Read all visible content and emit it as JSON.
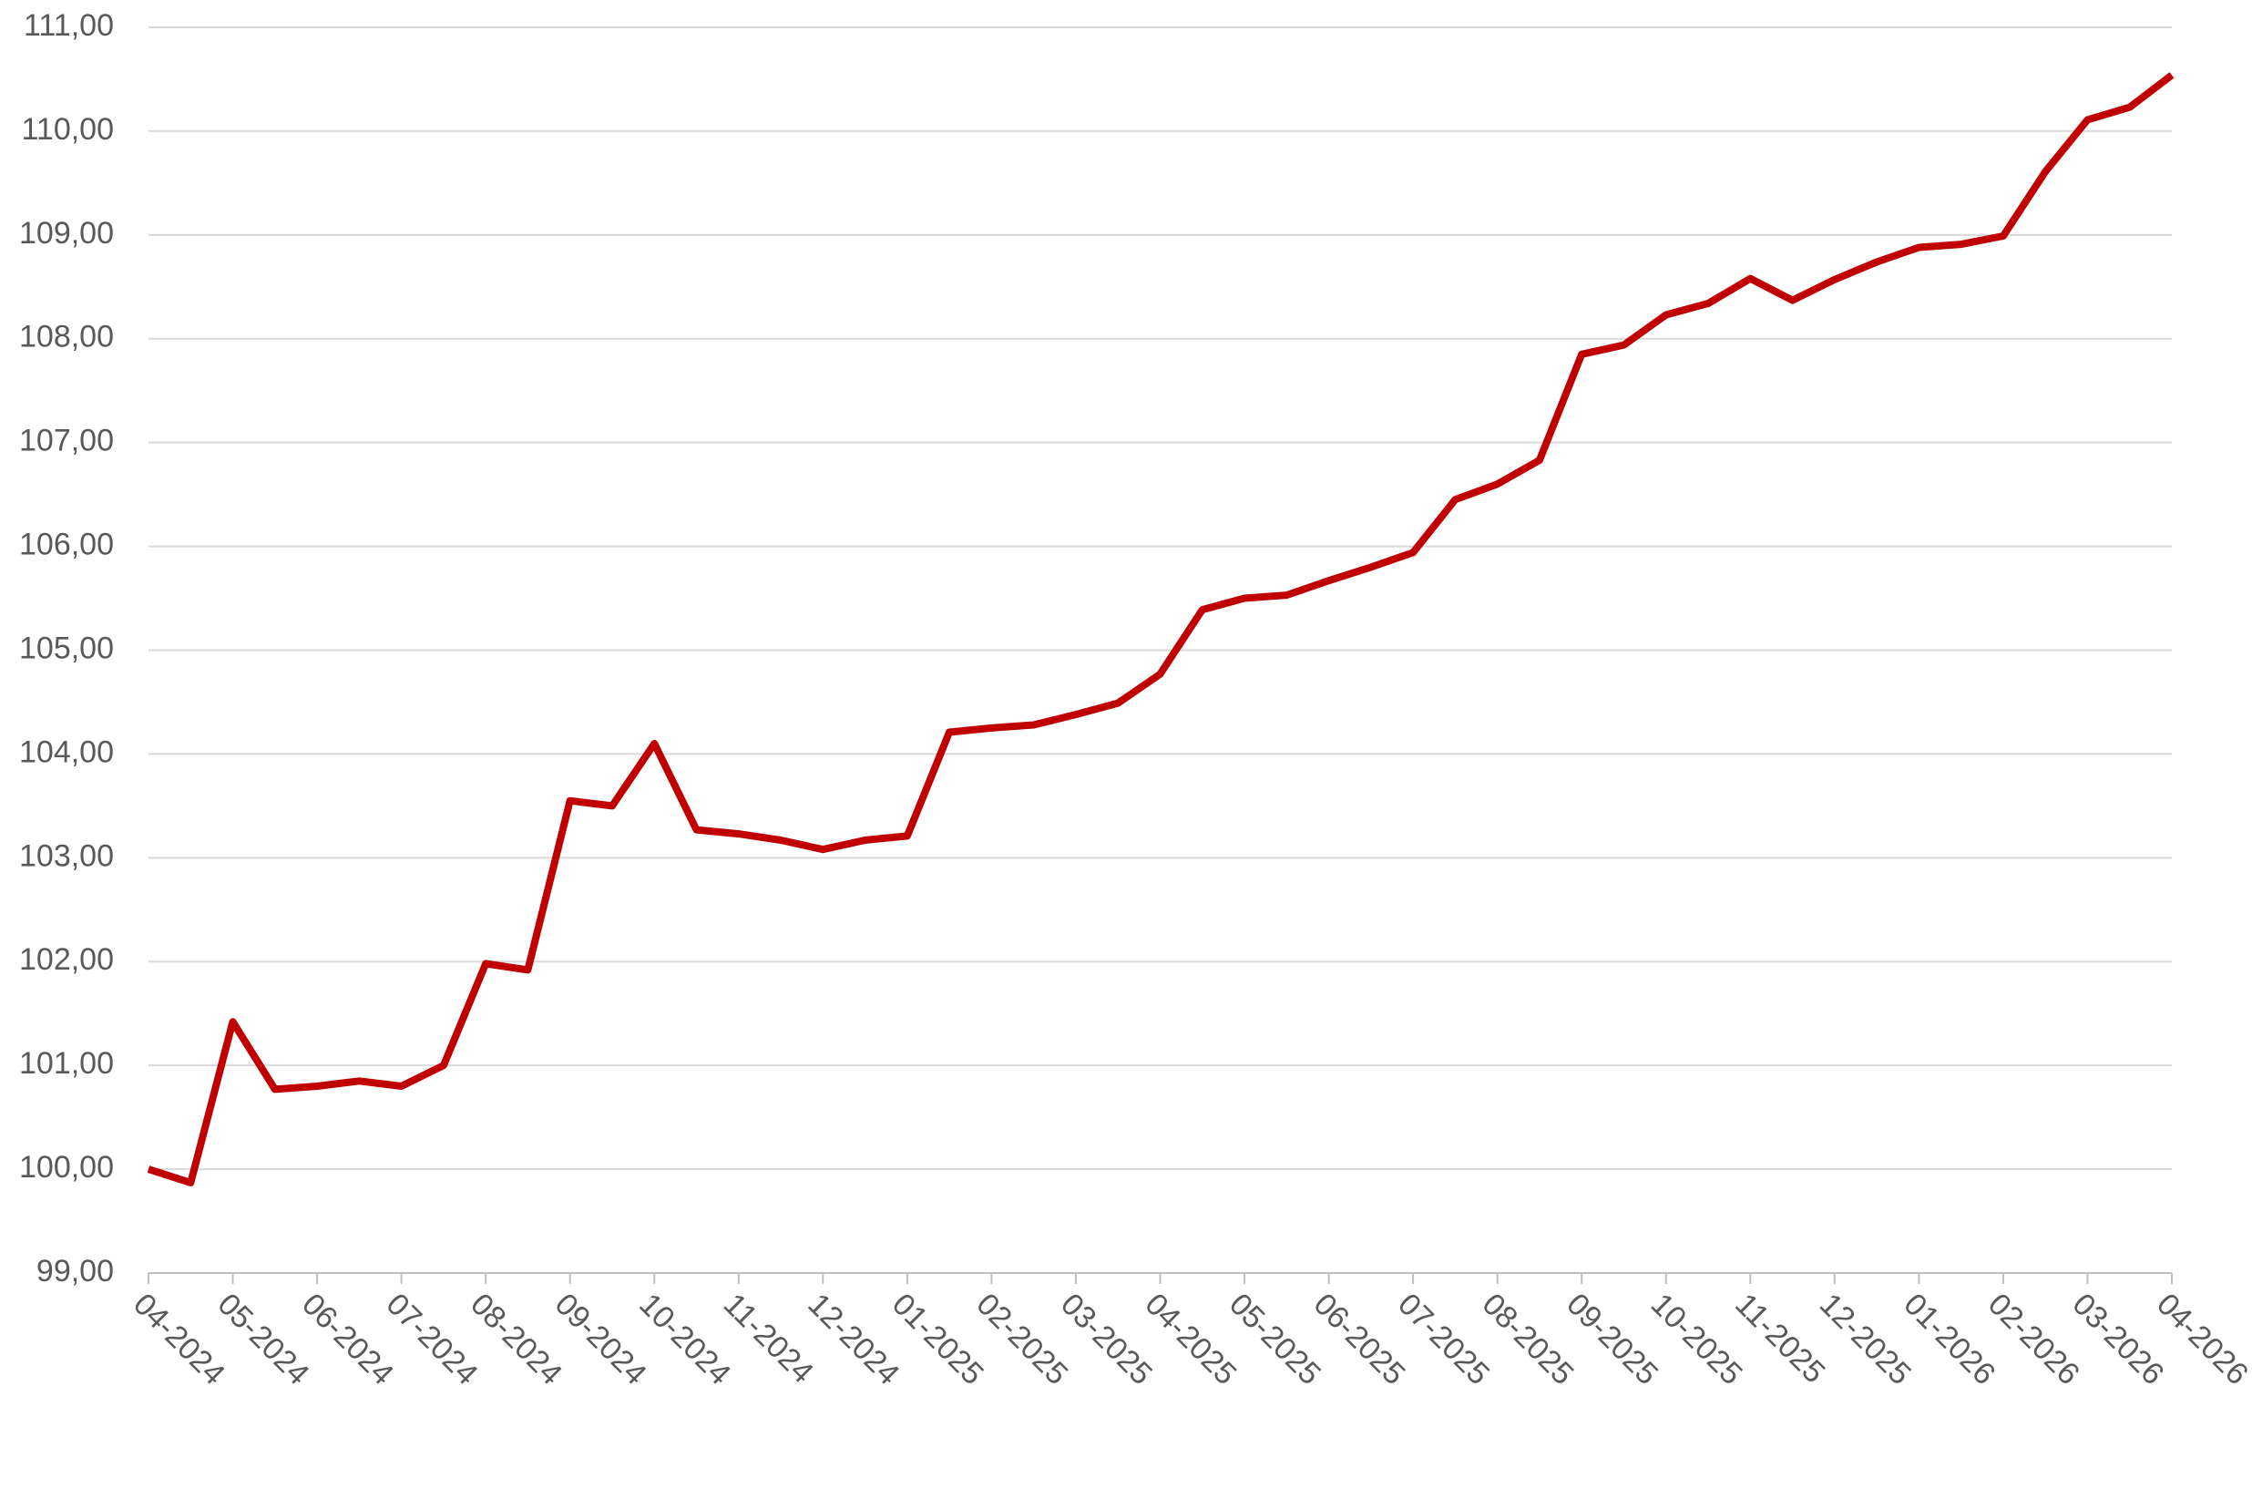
{
  "chart_data": {
    "type": "line",
    "categories": [
      "04-2024",
      null,
      "05-2024",
      null,
      "06-2024",
      null,
      "07-2024",
      null,
      "08-2024",
      null,
      "09-2024",
      null,
      "10-2024",
      null,
      "11-2024",
      null,
      "12-2024",
      null,
      "01-2025",
      null,
      "02-2025",
      null,
      "03-2025",
      null,
      "04-2025",
      null,
      "05-2025",
      null,
      "06-2025",
      null,
      "07-2025",
      null,
      "08-2025",
      null,
      "09-2025",
      null,
      "10-2025",
      null,
      "11-2025",
      null,
      "12-2025",
      null,
      "01-2026",
      null,
      "02-2026",
      null,
      "03-2026",
      null,
      "04-2026"
    ],
    "values": [
      100.0,
      99.87,
      101.42,
      100.77,
      100.8,
      100.85,
      100.8,
      101.0,
      101.98,
      101.92,
      103.55,
      103.5,
      104.1,
      103.27,
      103.23,
      103.17,
      103.08,
      103.17,
      103.21,
      104.21,
      104.25,
      104.28,
      104.38,
      104.49,
      104.77,
      105.39,
      105.5,
      105.53,
      105.67,
      105.8,
      105.94,
      106.45,
      106.6,
      106.83,
      107.85,
      107.94,
      108.23,
      108.34,
      108.58,
      108.37,
      108.57,
      108.74,
      108.88,
      108.91,
      108.99,
      109.61,
      110.11,
      110.23,
      110.54
    ],
    "color": "#c00000",
    "ylim": [
      99,
      111
    ],
    "yticks": [
      {
        "value": 99,
        "label": "99,00"
      },
      {
        "value": 100,
        "label": "100,00"
      },
      {
        "value": 101,
        "label": "101,00"
      },
      {
        "value": 102,
        "label": "102,00"
      },
      {
        "value": 103,
        "label": "103,00"
      },
      {
        "value": 104,
        "label": "104,00"
      },
      {
        "value": 105,
        "label": "105,00"
      },
      {
        "value": 106,
        "label": "106,00"
      },
      {
        "value": 107,
        "label": "107,00"
      },
      {
        "value": 108,
        "label": "108,00"
      },
      {
        "value": 109,
        "label": "109,00"
      },
      {
        "value": 110,
        "label": "110,00"
      },
      {
        "value": 111,
        "label": "111,00"
      }
    ],
    "grid": true
  }
}
